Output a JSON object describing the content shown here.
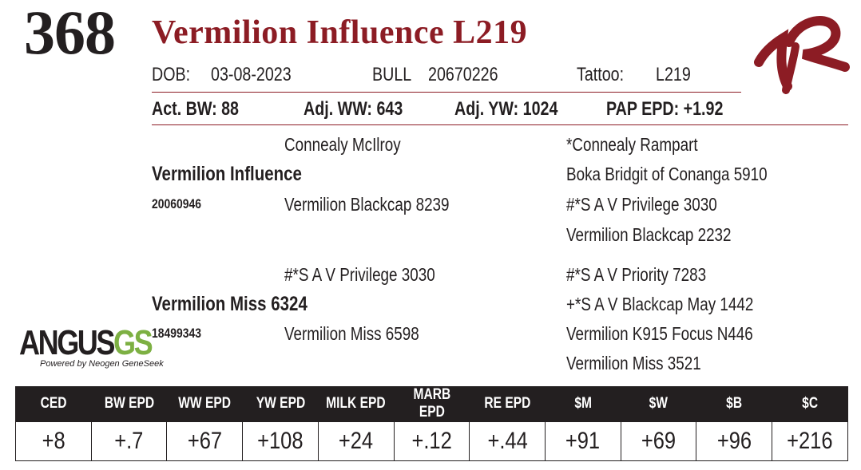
{
  "lot_number": "368",
  "animal_name": "Vermilion Influence L219",
  "details": {
    "dob_label": "DOB:",
    "dob_value": "03-08-2023",
    "sex": "BULL",
    "registration": "20670226",
    "tattoo_label": "Tattoo:",
    "tattoo_value": "L219"
  },
  "performance": {
    "act_bw": "Act. BW: 88",
    "adj_ww": "Adj. WW: 643",
    "adj_yw": "Adj. YW: 1024",
    "pap_epd": "PAP EPD: +1.92"
  },
  "pedigree": {
    "sire": "Vermilion Influence",
    "sire_reg": "20060946",
    "sire_sire": "Connealy McIlroy",
    "sire_dam": "Vermilion Blackcap 8239",
    "sire_sire_sire": "*Connealy Rampart",
    "sire_sire_dam": "Boka Bridgit of Conanga 5910",
    "sire_dam_sire": "#*S A V Privilege 3030",
    "sire_dam_dam": "Vermilion Blackcap 2232",
    "dam": "Vermilion Miss 6324",
    "dam_reg": "18499343",
    "dam_sire": "#*S A V Privilege 3030",
    "dam_dam": "Vermilion Miss 6598",
    "dam_sire_sire": "#*S A V Priority 7283",
    "dam_sire_dam": "+*S A V Blackcap May 1442",
    "dam_dam_sire": "Vermilion K915 Focus N446",
    "dam_dam_dam": "Vermilion Miss 3521"
  },
  "logo": {
    "main_a": "ANGUS",
    "main_b": "GS",
    "sub": "Powered by Neogen GeneSeek"
  },
  "brand_icon": "vr-brand-icon",
  "colors": {
    "accent": "#8c1c24",
    "text": "#231f20",
    "logo_green": "#7db043"
  },
  "epd_headers": [
    "CED",
    "BW EPD",
    "WW EPD",
    "YW EPD",
    "MILK EPD",
    "MARB EPD",
    "RE EPD",
    "$M",
    "$W",
    "$B",
    "$C"
  ],
  "epd_values": [
    "+8",
    "+.7",
    "+67",
    "+108",
    "+24",
    "+.12",
    "+.44",
    "+91",
    "+69",
    "+96",
    "+216"
  ]
}
